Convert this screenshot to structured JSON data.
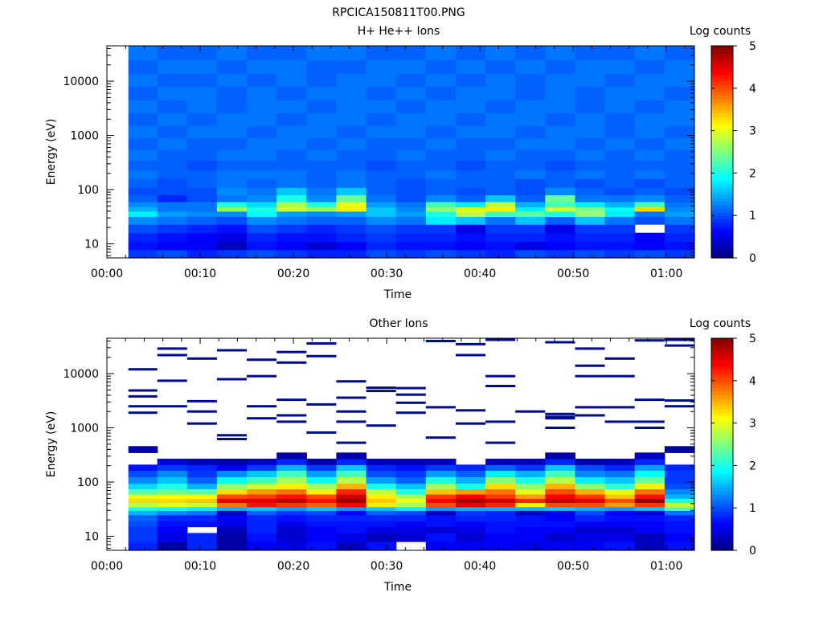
{
  "figure_title": "RPCICA150811T00.PNG",
  "colormap": "jet",
  "chart_data": [
    {
      "type": "heatmap",
      "title": "H+ He++ Ions",
      "xlabel": "Time",
      "ylabel": "Energy (eV)",
      "y_scale": "log",
      "x_ticks": [
        "00:00",
        "00:10",
        "00:20",
        "00:30",
        "00:40",
        "00:50",
        "01:00"
      ],
      "xlim_minutes": [
        0,
        63
      ],
      "y_ticks": [
        "10",
        "100",
        "1000",
        "10000"
      ],
      "ylim": [
        5.5,
        45000
      ],
      "colorbar": {
        "label": "Log counts",
        "range": [
          0,
          5
        ],
        "ticks": [
          "0",
          "1",
          "2",
          "3",
          "4",
          "5"
        ]
      },
      "time_bins_minutes": [
        [
          2.3,
          5.4
        ],
        [
          5.4,
          8.6
        ],
        [
          8.6,
          11.8
        ],
        [
          11.8,
          15.0
        ],
        [
          15.0,
          18.2
        ],
        [
          18.2,
          21.4
        ],
        [
          21.4,
          24.6
        ],
        [
          24.6,
          27.8
        ],
        [
          27.8,
          31.0
        ],
        [
          31.0,
          34.2
        ],
        [
          34.2,
          37.4
        ],
        [
          37.4,
          40.6
        ],
        [
          40.6,
          43.8
        ],
        [
          43.8,
          47.0
        ],
        [
          47.0,
          50.2
        ],
        [
          50.2,
          53.4
        ],
        [
          53.4,
          56.6
        ],
        [
          56.6,
          59.8
        ],
        [
          59.8,
          63.0
        ]
      ],
      "energy_bins_eV": [
        [
          5.5,
          7.8
        ],
        [
          7.8,
          11
        ],
        [
          11,
          16
        ],
        [
          16,
          23
        ],
        [
          23,
          32
        ],
        [
          32,
          40
        ],
        [
          40,
          48
        ],
        [
          48,
          60
        ],
        [
          60,
          80
        ],
        [
          80,
          110
        ],
        [
          110,
          160
        ],
        [
          160,
          230
        ],
        [
          230,
          350
        ],
        [
          350,
          550
        ],
        [
          550,
          900
        ],
        [
          900,
          1500
        ],
        [
          1500,
          2600
        ],
        [
          2600,
          4500
        ],
        [
          4500,
          8000
        ],
        [
          8000,
          14000
        ],
        [
          14000,
          25000
        ],
        [
          25000,
          45000
        ]
      ],
      "log_counts": [
        [
          0.9,
          1.0,
          0.8,
          0.9,
          1.0,
          0.9,
          0.8,
          0.8,
          1.0,
          0.9,
          1.0,
          0.9,
          0.8,
          1.0,
          0.9,
          1.0,
          0.9,
          1.0,
          0.9
        ],
        [
          0.7,
          0.6,
          0.6,
          0.3,
          0.7,
          0.6,
          0.4,
          0.6,
          0.8,
          0.7,
          0.7,
          0.6,
          0.7,
          0.5,
          0.6,
          0.7,
          0.7,
          0.6,
          0.7
        ],
        [
          0.8,
          0.7,
          0.6,
          0.5,
          0.8,
          0.7,
          0.7,
          0.8,
          0.9,
          0.8,
          0.8,
          0.7,
          0.8,
          0.8,
          0.7,
          0.8,
          0.8,
          0.6,
          0.8
        ],
        [
          1.0,
          0.9,
          0.8,
          0.7,
          1.0,
          0.9,
          0.8,
          0.9,
          1.0,
          0.9,
          0.9,
          0.5,
          0.9,
          0.9,
          0.5,
          0.9,
          0.9,
          null,
          0.9
        ],
        [
          1.3,
          1.2,
          1.1,
          1.0,
          1.3,
          1.2,
          1.1,
          1.1,
          1.3,
          1.2,
          1.8,
          1.6,
          1.2,
          1.6,
          1.1,
          1.6,
          1.2,
          1.0,
          1.2
        ],
        [
          1.8,
          1.4,
          1.3,
          1.3,
          1.9,
          1.4,
          1.3,
          1.4,
          1.6,
          1.4,
          2.0,
          2.8,
          2.2,
          2.3,
          2.0,
          2.6,
          1.8,
          1.2,
          1.4
        ],
        [
          1.5,
          1.2,
          1.2,
          2.6,
          2.0,
          2.9,
          2.6,
          3.2,
          1.6,
          1.3,
          2.6,
          3.0,
          3.2,
          1.8,
          2.9,
          2.5,
          1.9,
          3.3,
          1.3
        ],
        [
          1.3,
          1.2,
          1.2,
          2.0,
          1.7,
          2.7,
          2.0,
          3.0,
          1.4,
          1.2,
          2.2,
          1.8,
          2.8,
          1.5,
          2.2,
          1.8,
          1.5,
          2.2,
          1.2
        ],
        [
          1.1,
          0.8,
          1.0,
          1.2,
          1.3,
          2.0,
          1.3,
          2.4,
          1.2,
          1.0,
          1.3,
          1.1,
          1.6,
          1.1,
          2.4,
          1.2,
          1.2,
          1.3,
          1.1
        ],
        [
          1.0,
          1.0,
          1.0,
          1.3,
          1.2,
          1.6,
          1.2,
          1.6,
          1.1,
          1.0,
          1.1,
          1.0,
          1.1,
          1.0,
          1.3,
          1.1,
          1.0,
          1.1,
          1.0
        ],
        [
          1.1,
          1.0,
          1.1,
          1.2,
          1.1,
          1.2,
          1.1,
          1.2,
          1.1,
          1.0,
          1.1,
          1.1,
          1.1,
          1.0,
          1.1,
          1.0,
          1.1,
          1.0,
          1.1
        ],
        [
          1.2,
          1.1,
          1.1,
          1.2,
          1.2,
          1.2,
          1.1,
          1.2,
          1.1,
          1.1,
          1.2,
          1.1,
          1.1,
          1.2,
          1.1,
          1.2,
          1.1,
          1.2,
          1.1
        ],
        [
          1.1,
          1.1,
          1.0,
          1.1,
          1.1,
          1.1,
          1.1,
          1.1,
          1.0,
          1.1,
          1.1,
          1.0,
          1.1,
          1.1,
          1.0,
          1.1,
          1.1,
          1.1,
          1.1
        ],
        [
          1.2,
          1.1,
          1.1,
          1.2,
          1.2,
          1.1,
          1.2,
          1.1,
          1.1,
          1.2,
          1.1,
          1.1,
          1.2,
          1.1,
          1.1,
          1.2,
          1.1,
          1.2,
          1.1
        ],
        [
          1.1,
          1.2,
          1.1,
          1.1,
          1.2,
          1.2,
          1.1,
          1.2,
          1.1,
          1.1,
          1.2,
          1.1,
          1.1,
          1.2,
          1.2,
          1.1,
          1.2,
          1.1,
          1.2
        ],
        [
          1.2,
          1.1,
          1.2,
          1.2,
          1.1,
          1.2,
          1.2,
          1.1,
          1.2,
          1.2,
          1.1,
          1.2,
          1.2,
          1.1,
          1.2,
          1.2,
          1.1,
          1.2,
          1.1
        ],
        [
          1.1,
          1.2,
          1.1,
          1.2,
          1.2,
          1.1,
          1.2,
          1.2,
          1.1,
          1.2,
          1.2,
          1.1,
          1.2,
          1.2,
          1.1,
          1.2,
          1.1,
          1.2,
          1.2
        ],
        [
          1.2,
          1.1,
          1.2,
          1.1,
          1.2,
          1.2,
          1.1,
          1.2,
          1.2,
          1.1,
          1.2,
          1.2,
          1.1,
          1.2,
          1.2,
          1.1,
          1.2,
          1.1,
          1.2
        ],
        [
          1.1,
          1.2,
          1.2,
          1.1,
          1.2,
          1.1,
          1.2,
          1.2,
          1.1,
          1.2,
          1.1,
          1.2,
          1.2,
          1.1,
          1.2,
          1.1,
          1.2,
          1.2,
          1.1
        ],
        [
          1.2,
          1.1,
          1.1,
          1.2,
          1.1,
          1.2,
          1.1,
          1.2,
          1.2,
          1.1,
          1.2,
          1.1,
          1.2,
          1.1,
          1.2,
          1.2,
          1.1,
          1.2,
          1.2
        ],
        [
          1.1,
          1.2,
          1.2,
          1.1,
          1.2,
          1.2,
          1.1,
          1.1,
          1.2,
          1.2,
          1.1,
          1.2,
          1.1,
          1.2,
          1.1,
          1.2,
          1.2,
          1.1,
          1.2
        ],
        [
          1.2,
          1.1,
          1.1,
          1.2,
          1.1,
          1.1,
          1.2,
          1.2,
          1.1,
          1.1,
          1.2,
          1.1,
          1.2,
          1.1,
          1.2,
          1.1,
          1.1,
          1.2,
          1.1
        ]
      ]
    },
    {
      "type": "heatmap",
      "title": "Other Ions",
      "xlabel": "Time",
      "ylabel": "Energy (eV)",
      "y_scale": "log",
      "x_ticks": [
        "00:00",
        "00:10",
        "00:20",
        "00:30",
        "00:40",
        "00:50",
        "01:00"
      ],
      "xlim_minutes": [
        0,
        63
      ],
      "y_ticks": [
        "10",
        "100",
        "1000",
        "10000"
      ],
      "ylim": [
        5.5,
        45000
      ],
      "colorbar": {
        "label": "Log counts",
        "range": [
          0,
          5
        ],
        "ticks": [
          "0",
          "1",
          "2",
          "3",
          "4",
          "5"
        ]
      },
      "time_bins_minutes": [
        [
          2.3,
          5.4
        ],
        [
          5.4,
          8.6
        ],
        [
          8.6,
          11.8
        ],
        [
          11.8,
          15.0
        ],
        [
          15.0,
          18.2
        ],
        [
          18.2,
          21.4
        ],
        [
          21.4,
          24.6
        ],
        [
          24.6,
          27.8
        ],
        [
          27.8,
          31.0
        ],
        [
          31.0,
          34.2
        ],
        [
          34.2,
          37.4
        ],
        [
          37.4,
          40.6
        ],
        [
          40.6,
          43.8
        ],
        [
          43.8,
          47.0
        ],
        [
          47.0,
          50.2
        ],
        [
          50.2,
          53.4
        ],
        [
          53.4,
          56.6
        ],
        [
          56.6,
          59.8
        ],
        [
          59.8,
          63.0
        ]
      ],
      "energy_bins_eV": [
        [
          5.5,
          8
        ],
        [
          8,
          11.5
        ],
        [
          11.5,
          15
        ],
        [
          15,
          19
        ],
        [
          19,
          25
        ],
        [
          25,
          30
        ],
        [
          30,
          35
        ],
        [
          35,
          42
        ],
        [
          42,
          50
        ],
        [
          50,
          60
        ],
        [
          60,
          75
        ],
        [
          75,
          95
        ],
        [
          95,
          125
        ],
        [
          125,
          165
        ],
        [
          165,
          210
        ],
        [
          210,
          270
        ],
        [
          270,
          350
        ],
        [
          350,
          460
        ]
      ],
      "log_counts": [
        [
          0.8,
          0.2,
          0.8,
          0.2,
          0.6,
          0.5,
          0.7,
          0.3,
          0.7,
          null,
          0.6,
          0.6,
          0.6,
          0.5,
          0.6,
          0.6,
          0.7,
          0.3,
          0.7
        ],
        [
          0.9,
          0.5,
          0.8,
          0.2,
          0.7,
          0.4,
          0.6,
          0.5,
          0.3,
          0.4,
          0.7,
          0.4,
          0.6,
          0.6,
          0.4,
          0.5,
          0.5,
          0.3,
          0.6
        ],
        [
          0.9,
          0.6,
          null,
          0.3,
          0.8,
          0.4,
          0.6,
          0.7,
          0.5,
          0.5,
          0.4,
          0.5,
          0.7,
          0.6,
          0.6,
          0.4,
          0.4,
          0.6,
          0.7
        ],
        [
          1.0,
          0.7,
          0.7,
          0.5,
          0.8,
          0.5,
          0.7,
          0.7,
          0.7,
          0.6,
          0.7,
          0.6,
          0.7,
          0.7,
          0.7,
          0.6,
          0.6,
          0.6,
          0.7
        ],
        [
          1.1,
          0.8,
          0.8,
          0.6,
          0.8,
          0.7,
          0.8,
          0.8,
          0.8,
          0.8,
          0.7,
          0.8,
          0.8,
          0.7,
          0.6,
          0.8,
          0.7,
          0.7,
          0.8
        ],
        [
          1.5,
          1.3,
          1.2,
          0.3,
          1.1,
          0.9,
          1.0,
          0.6,
          1.1,
          1.0,
          0.3,
          0.9,
          0.8,
          0.3,
          0.5,
          1.0,
          0.6,
          0.4,
          1.2
        ],
        [
          2.0,
          1.9,
          1.8,
          1.5,
          1.6,
          1.4,
          1.6,
          1.4,
          1.6,
          1.8,
          1.4,
          1.5,
          1.5,
          1.5,
          1.6,
          1.5,
          1.4,
          1.6,
          2.3
        ],
        [
          2.8,
          3.0,
          2.9,
          3.8,
          4.3,
          4.1,
          3.9,
          4.4,
          3.2,
          2.7,
          4.0,
          4.5,
          4.2,
          3.2,
          4.0,
          4.0,
          3.6,
          4.1,
          2.8
        ],
        [
          3.3,
          3.3,
          3.4,
          4.5,
          4.5,
          4.7,
          4.3,
          4.9,
          3.4,
          3.1,
          4.4,
          4.8,
          4.6,
          4.2,
          4.7,
          4.5,
          4.0,
          4.9,
          2.0
        ],
        [
          3.0,
          3.1,
          3.1,
          4.0,
          4.1,
          4.3,
          4.0,
          4.6,
          3.2,
          2.7,
          4.1,
          4.4,
          4.1,
          3.6,
          4.4,
          4.1,
          3.4,
          4.3,
          1.5
        ],
        [
          2.3,
          2.4,
          2.3,
          3.3,
          3.6,
          3.8,
          3.2,
          4.2,
          2.8,
          2.0,
          3.4,
          3.6,
          3.8,
          3.0,
          4.0,
          3.5,
          3.0,
          3.8,
          1.3
        ],
        [
          1.7,
          2.0,
          1.5,
          2.6,
          2.9,
          3.2,
          2.7,
          3.5,
          2.0,
          1.6,
          2.7,
          2.0,
          3.3,
          2.6,
          3.5,
          2.6,
          2.1,
          3.2,
          1.0
        ],
        [
          1.3,
          1.6,
          1.1,
          1.9,
          2.2,
          2.7,
          1.9,
          2.8,
          1.4,
          1.1,
          2.0,
          1.5,
          2.6,
          2.0,
          2.8,
          1.8,
          1.6,
          2.4,
          0.9
        ],
        [
          1.0,
          1.3,
          0.9,
          1.3,
          1.6,
          2.2,
          1.4,
          2.2,
          1.0,
          0.9,
          1.4,
          1.1,
          1.8,
          1.5,
          2.2,
          1.3,
          1.2,
          1.9,
          0.9
        ],
        [
          0.7,
          0.9,
          0.8,
          0.6,
          0.9,
          1.5,
          0.9,
          1.6,
          0.8,
          0.7,
          0.9,
          0.8,
          1.1,
          0.9,
          1.6,
          1.0,
          0.8,
          1.4,
          0.8
        ],
        [
          null,
          0.5,
          0.3,
          0.2,
          0.4,
          0.8,
          0.2,
          0.8,
          0.3,
          0.3,
          0.3,
          null,
          0.3,
          0.3,
          0.8,
          0.2,
          0.3,
          0.8,
          null
        ],
        [
          null,
          null,
          null,
          null,
          null,
          0.2,
          null,
          0.2,
          null,
          null,
          null,
          null,
          null,
          null,
          0.2,
          null,
          null,
          0.3,
          null
        ],
        [
          0.2,
          null,
          null,
          null,
          null,
          null,
          null,
          null,
          null,
          null,
          null,
          null,
          null,
          null,
          null,
          null,
          null,
          null,
          0.2
        ]
      ],
      "sparse_high_energy_lines_eV": [
        [
          4900,
          3800,
          2500,
          1900,
          12000
        ],
        [
          7400,
          2500,
          29000,
          22000
        ],
        [
          3100,
          2000,
          19000,
          1200
        ],
        [
          27000,
          7900,
          730,
          620
        ],
        [
          18000,
          9000,
          2500,
          1500
        ],
        [
          25000,
          16000,
          1700,
          1300,
          3300
        ],
        [
          36000,
          21000,
          820,
          2700
        ],
        [
          2000,
          1300,
          3600,
          7200,
          530
        ],
        [
          5500,
          4800,
          1100
        ],
        [
          4100,
          2900,
          5400,
          1900
        ],
        [
          40000,
          2400,
          660
        ],
        [
          22000,
          35000,
          2100,
          1200
        ],
        [
          42000,
          9000,
          5900,
          1300,
          530
        ],
        [
          2000
        ],
        [
          38000,
          1800,
          1600,
          1000,
          1500
        ],
        [
          29000,
          14000,
          9000,
          2400,
          1700
        ],
        [
          19000,
          9000,
          2400,
          1300
        ],
        [
          41000,
          3300,
          1300,
          1000
        ],
        [
          33000,
          42000,
          3200,
          2500,
          420
        ]
      ]
    }
  ]
}
